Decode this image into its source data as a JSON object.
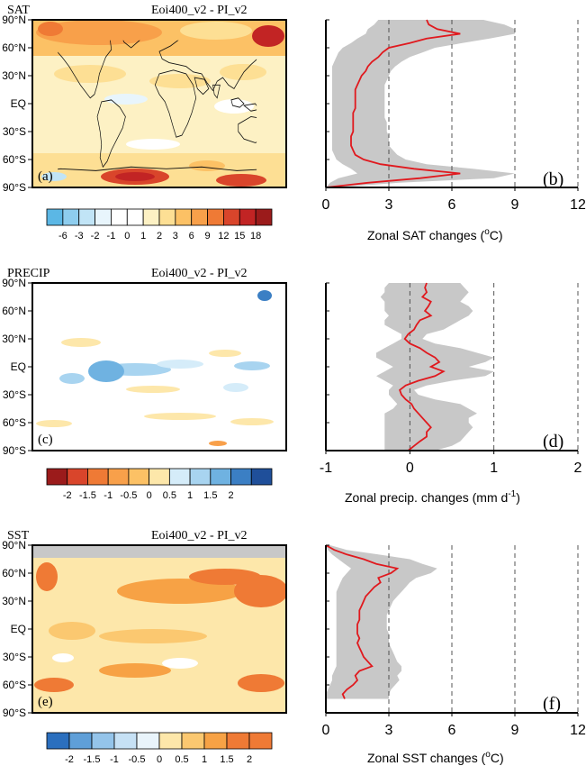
{
  "colors": {
    "grey_band": "#c8c8c8",
    "mean_line": "#e0191e",
    "land_grey": "#c8c8c8",
    "warm_scale": [
      "#ffffff",
      "#fdf1c4",
      "#fddf94",
      "#fcc165",
      "#f8a04a",
      "#ef7a35",
      "#d9452b",
      "#c22424",
      "#9b1b1b"
    ],
    "cool_scale": [
      "#5bb7e5",
      "#8ecdee",
      "#c1e4f6",
      "#e8f5fc"
    ],
    "precip_dry": [
      "#9b1b1b",
      "#d9452b",
      "#ef7a35",
      "#f8a04a",
      "#fcc165",
      "#fde7aa"
    ],
    "precip_wet": [
      "#d5ecf9",
      "#a8d4f0",
      "#6fb2e1",
      "#3b7fc4",
      "#1f4f9a"
    ],
    "sst_cool": [
      "#2b6fbe",
      "#5f9fd8",
      "#94c4ea",
      "#c6e1f5",
      "#e9f4fb"
    ],
    "sst_warm": [
      "#fde7aa",
      "#fbc870",
      "#f7a245",
      "#ef7a35"
    ]
  },
  "icons": [
    "world-coastline-icon"
  ],
  "panels": [
    {
      "map": {
        "variable": "SAT",
        "title": "Eoi400_v2 - PI_v2",
        "label": "(a)",
        "lat_labels": [
          "90°N",
          "60°N",
          "30°N",
          "EQ",
          "30°S",
          "60°S",
          "90°S"
        ],
        "colorbar_labels": [
          "-6",
          "-3",
          "-2",
          "-1",
          "0",
          "1",
          "2",
          "3",
          "6",
          "9",
          "12",
          "15",
          "18"
        ]
      },
      "profile": {
        "label": "(b)",
        "xlabel": "Zonal SAT changes (",
        "xlabel_unit": "o",
        "xlabel_end": "C)"
      }
    },
    {
      "map": {
        "variable": "PRECIP",
        "title": "Eoi400_v2 - PI_v2",
        "label": "(c)",
        "lat_labels": [
          "90°N",
          "60°N",
          "30°N",
          "EQ",
          "30°S",
          "60°S",
          "90°S"
        ],
        "colorbar_labels": [
          "-2",
          "-1.5",
          "-1",
          "-0.5",
          "0",
          "0.5",
          "1",
          "1.5",
          "2"
        ]
      },
      "profile": {
        "label": "(d)",
        "xlabel": "Zonal precip. changes (mm d",
        "xlabel_unit": "-1",
        "xlabel_end": ")"
      }
    },
    {
      "map": {
        "variable": "SST",
        "title": "Eoi400_v2 - PI_v2",
        "label": "(e)",
        "lat_labels": [
          "90°N",
          "60°N",
          "30°N",
          "EQ",
          "30°S",
          "60°S",
          "90°S"
        ],
        "colorbar_labels": [
          "-2",
          "-1.5",
          "-1",
          "-0.5",
          "0",
          "0.5",
          "1",
          "1.5",
          "2"
        ]
      },
      "profile": {
        "label": "(f)",
        "xlabel": "Zonal SST changes (",
        "xlabel_unit": "o",
        "xlabel_end": "C)"
      }
    }
  ],
  "chart_data": [
    {
      "type": "line",
      "title": "",
      "xlabel": "Zonal SAT changes (oC)",
      "ylabel": "",
      "xlim": [
        0,
        12
      ],
      "ylim": [
        -90,
        90
      ],
      "xticks": [
        "0",
        "3",
        "6",
        "9",
        "12"
      ],
      "dashed_gridlines_x": [
        3,
        6,
        9,
        12
      ],
      "series": [
        {
          "role": "zonal mean",
          "lat": [
            90,
            85,
            80,
            75,
            70,
            65,
            60,
            55,
            50,
            45,
            40,
            35,
            30,
            25,
            20,
            15,
            10,
            5,
            0,
            -5,
            -10,
            -15,
            -20,
            -25,
            -30,
            -35,
            -40,
            -45,
            -50,
            -55,
            -60,
            -65,
            -70,
            -75,
            -80,
            -85,
            -90
          ],
          "values": [
            4.8,
            4.9,
            5.3,
            6.4,
            4.8,
            4.0,
            3.0,
            2.7,
            2.5,
            2.2,
            2.0,
            1.9,
            1.7,
            1.6,
            1.5,
            1.4,
            1.4,
            1.4,
            1.4,
            1.4,
            1.3,
            1.3,
            1.3,
            1.3,
            1.3,
            1.2,
            1.2,
            1.2,
            1.3,
            1.4,
            1.8,
            2.6,
            4.2,
            6.4,
            4.5,
            2.0,
            0.0
          ]
        },
        {
          "role": "range lower",
          "lat": [
            90,
            85,
            80,
            75,
            70,
            65,
            60,
            55,
            50,
            45,
            40,
            35,
            30,
            25,
            20,
            15,
            10,
            5,
            0,
            -5,
            -10,
            -15,
            -20,
            -25,
            -30,
            -35,
            -40,
            -45,
            -50,
            -55,
            -60,
            -65,
            -70,
            -75,
            -80,
            -85,
            -90
          ],
          "values": [
            2.5,
            2.3,
            2.0,
            1.9,
            1.5,
            1.2,
            0.8,
            0.6,
            0.5,
            0.4,
            0.3,
            0.3,
            0.3,
            0.3,
            0.3,
            0.3,
            0.3,
            0.3,
            0.3,
            0.3,
            0.3,
            0.3,
            0.3,
            0.3,
            0.3,
            0.3,
            0.3,
            0.3,
            0.3,
            0.4,
            0.5,
            0.8,
            1.2,
            1.5,
            0.6,
            0.2,
            0.0
          ]
        },
        {
          "role": "range upper",
          "lat": [
            90,
            85,
            80,
            75,
            70,
            65,
            60,
            55,
            50,
            45,
            40,
            35,
            30,
            25,
            20,
            15,
            10,
            5,
            0,
            -5,
            -10,
            -15,
            -20,
            -25,
            -30,
            -35,
            -40,
            -45,
            -50,
            -55,
            -60,
            -65,
            -70,
            -75,
            -80,
            -85,
            -90
          ],
          "values": [
            7.5,
            8.5,
            9.0,
            9.0,
            7.8,
            6.5,
            5.2,
            4.6,
            4.0,
            3.6,
            3.3,
            3.1,
            3.0,
            2.9,
            2.8,
            2.8,
            2.8,
            2.8,
            2.8,
            2.8,
            2.8,
            2.8,
            2.9,
            2.9,
            2.9,
            3.0,
            3.0,
            3.0,
            3.2,
            3.4,
            3.8,
            4.8,
            7.0,
            9.0,
            8.0,
            3.5,
            0.5
          ]
        }
      ]
    },
    {
      "type": "line",
      "title": "",
      "xlabel": "Zonal precip. changes (mm d-1)",
      "ylabel": "",
      "xlim": [
        -1,
        2
      ],
      "ylim": [
        -90,
        90
      ],
      "xticks": [
        "-1",
        "0",
        "1",
        "2"
      ],
      "dashed_gridlines_x": [
        0,
        1,
        2
      ],
      "series": [
        {
          "role": "zonal mean",
          "lat": [
            90,
            85,
            80,
            75,
            70,
            65,
            60,
            55,
            50,
            45,
            40,
            35,
            30,
            25,
            20,
            15,
            10,
            5,
            0,
            -5,
            -10,
            -15,
            -20,
            -25,
            -30,
            -35,
            -40,
            -45,
            -50,
            -55,
            -60,
            -65,
            -70,
            -75,
            -80,
            -85,
            -90
          ],
          "values": [
            0.2,
            0.18,
            0.2,
            0.15,
            0.25,
            0.22,
            0.18,
            0.25,
            0.12,
            0.08,
            0.05,
            -0.02,
            -0.06,
            0.0,
            0.12,
            0.2,
            0.3,
            0.35,
            0.25,
            0.4,
            0.3,
            0.1,
            -0.05,
            -0.12,
            -0.1,
            -0.05,
            0.02,
            0.05,
            0.1,
            0.15,
            0.2,
            0.25,
            0.2,
            0.2,
            0.12,
            0.05,
            -0.02
          ]
        },
        {
          "role": "range lower",
          "lat": [
            90,
            85,
            80,
            75,
            70,
            65,
            60,
            55,
            50,
            45,
            40,
            35,
            30,
            25,
            20,
            15,
            10,
            5,
            0,
            -5,
            -10,
            -15,
            -20,
            -25,
            -30,
            -35,
            -40,
            -45,
            -50,
            -55,
            -60,
            -65,
            -70,
            -75,
            -80,
            -85,
            -90
          ],
          "values": [
            -0.25,
            -0.3,
            -0.3,
            -0.35,
            -0.3,
            -0.3,
            -0.3,
            -0.25,
            -0.3,
            -0.3,
            -0.2,
            -0.1,
            -0.1,
            -0.2,
            -0.3,
            -0.4,
            -0.4,
            -0.3,
            -0.2,
            -0.3,
            -0.4,
            -0.3,
            -0.2,
            -0.25,
            -0.25,
            -0.2,
            -0.15,
            -0.2,
            -0.3,
            -0.3,
            -0.3,
            -0.3,
            -0.3,
            -0.3,
            -0.3,
            -0.3,
            -0.3
          ]
        },
        {
          "role": "range upper",
          "lat": [
            90,
            85,
            80,
            75,
            70,
            65,
            60,
            55,
            50,
            45,
            40,
            35,
            30,
            25,
            20,
            15,
            10,
            5,
            0,
            -5,
            -10,
            -15,
            -20,
            -25,
            -30,
            -35,
            -40,
            -45,
            -50,
            -55,
            -60,
            -65,
            -70,
            -75,
            -80,
            -85,
            -90
          ],
          "values": [
            0.6,
            0.65,
            0.7,
            0.65,
            0.6,
            0.7,
            0.75,
            0.7,
            0.6,
            0.5,
            0.4,
            0.2,
            0.15,
            0.3,
            0.6,
            0.8,
            1.0,
            0.9,
            0.7,
            1.0,
            0.9,
            0.5,
            0.2,
            0.05,
            0.1,
            0.3,
            0.6,
            0.7,
            0.8,
            0.7,
            0.7,
            0.75,
            0.7,
            0.65,
            0.6,
            0.5,
            0.3
          ]
        }
      ]
    },
    {
      "type": "line",
      "title": "",
      "xlabel": "Zonal SST changes (oC)",
      "ylabel": "",
      "xlim": [
        0,
        12
      ],
      "ylim": [
        -90,
        90
      ],
      "xticks": [
        "0",
        "3",
        "6",
        "9",
        "12"
      ],
      "dashed_gridlines_x": [
        3,
        6,
        9,
        12
      ],
      "series": [
        {
          "role": "zonal mean",
          "lat": [
            90,
            85,
            80,
            75,
            70,
            65,
            60,
            55,
            50,
            45,
            40,
            35,
            30,
            25,
            20,
            15,
            10,
            5,
            0,
            -5,
            -10,
            -15,
            -20,
            -25,
            -30,
            -35,
            -40,
            -45,
            -50,
            -55,
            -60,
            -65,
            -70,
            -75
          ],
          "values": [
            0.0,
            0.4,
            1.0,
            1.8,
            2.4,
            3.4,
            3.1,
            2.5,
            2.6,
            2.3,
            2.1,
            1.9,
            1.8,
            1.7,
            1.6,
            1.6,
            1.6,
            1.5,
            1.5,
            1.5,
            1.6,
            1.5,
            1.6,
            1.7,
            1.8,
            2.0,
            2.2,
            1.6,
            1.4,
            1.5,
            1.3,
            1.0,
            0.8,
            0.9
          ]
        },
        {
          "role": "range lower",
          "lat": [
            90,
            85,
            80,
            75,
            70,
            65,
            60,
            55,
            50,
            45,
            40,
            35,
            30,
            25,
            20,
            15,
            10,
            5,
            0,
            -5,
            -10,
            -15,
            -20,
            -25,
            -30,
            -35,
            -40,
            -45,
            -50,
            -55,
            -60,
            -65,
            -70,
            -75
          ],
          "values": [
            0.0,
            0.1,
            0.3,
            0.6,
            0.9,
            1.2,
            1.0,
            0.8,
            0.7,
            0.6,
            0.5,
            0.5,
            0.5,
            0.5,
            0.5,
            0.5,
            0.5,
            0.5,
            0.5,
            0.5,
            0.5,
            0.5,
            0.5,
            0.5,
            0.5,
            0.5,
            0.5,
            0.4,
            0.3,
            0.3,
            0.2,
            0.1,
            0.0,
            0.0
          ]
        },
        {
          "role": "range upper",
          "lat": [
            90,
            85,
            80,
            75,
            70,
            65,
            60,
            55,
            50,
            45,
            40,
            35,
            30,
            25,
            20,
            15,
            10,
            5,
            0,
            -5,
            -10,
            -15,
            -20,
            -25,
            -30,
            -35,
            -40,
            -45,
            -50,
            -55,
            -60,
            -65,
            -70,
            -75
          ],
          "values": [
            0.2,
            1.0,
            2.5,
            4.0,
            4.6,
            5.3,
            5.0,
            4.3,
            4.0,
            3.8,
            3.6,
            3.4,
            3.2,
            3.1,
            3.0,
            2.9,
            2.9,
            2.9,
            2.9,
            3.0,
            3.0,
            3.0,
            3.1,
            3.2,
            3.3,
            3.4,
            3.6,
            3.6,
            3.4,
            3.5,
            3.3,
            3.1,
            3.0,
            3.0
          ]
        }
      ]
    }
  ]
}
